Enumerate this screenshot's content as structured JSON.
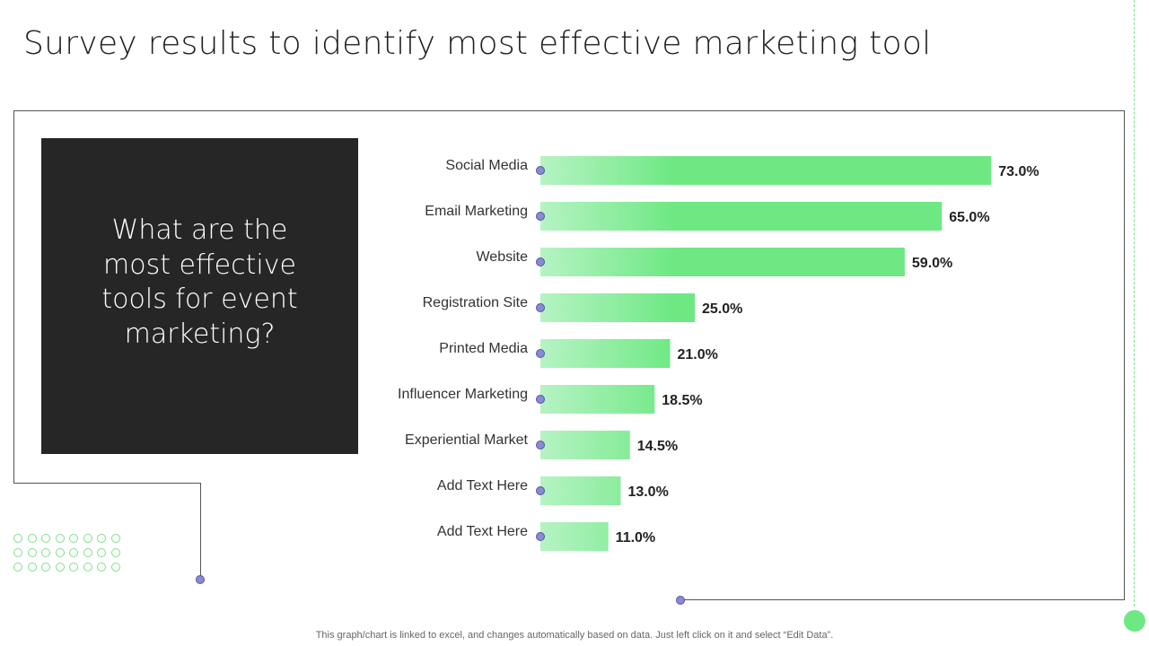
{
  "page": {
    "title": "Survey results to identify most effective marketing tool",
    "question": "What are the most effective tools for event marketing?",
    "footer_note": "This graph/chart is linked to excel, and changes automatically based on data. Just left click on it and select “Edit Data”."
  },
  "colors": {
    "bar_start": "#b6f3c3",
    "bar_end": "#6ee883",
    "accent_green": "#6ee883",
    "marker": "#8a8ad4",
    "dark_panel": "#262626"
  },
  "chart_data": {
    "type": "bar",
    "orientation": "horizontal",
    "categories": [
      "Social Media",
      "Email Marketing",
      "Website",
      "Registration Site",
      "Printed Media",
      "Influencer Marketing",
      "Experiential Market",
      "Add Text Here",
      "Add Text Here"
    ],
    "values": [
      73.0,
      65.0,
      59.0,
      25.0,
      21.0,
      18.5,
      14.5,
      13.0,
      11.0
    ],
    "value_labels": [
      "73.0%",
      "65.0%",
      "59.0%",
      "25.0%",
      "21.0%",
      "18.5%",
      "14.5%",
      "13.0%",
      "11.0%"
    ],
    "xlim": [
      0,
      100
    ],
    "grid": false,
    "legend": "none"
  }
}
